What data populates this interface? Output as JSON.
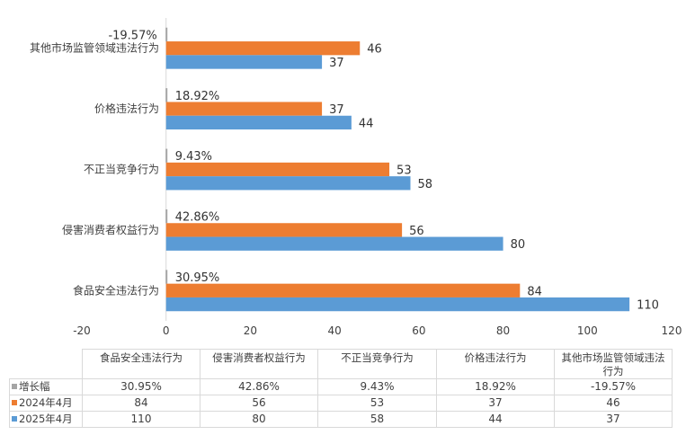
{
  "chart_data": {
    "type": "bar",
    "orientation": "horizontal",
    "categories": [
      "食品安全违法行为",
      "侵害消费者权益行为",
      "不正当竞争行为",
      "价格违法行为",
      "其他市场监管领域违法行为"
    ],
    "series": [
      {
        "name": "增长幅",
        "values": [
          30.95,
          42.86,
          9.43,
          18.92,
          -19.57
        ],
        "labels": [
          "30.95%",
          "42.86%",
          "9.43%",
          "18.92%",
          "-19.57%"
        ],
        "color": "#a5a5a5"
      },
      {
        "name": "2024年4月",
        "values": [
          84,
          56,
          53,
          37,
          46
        ],
        "labels": [
          "84",
          "56",
          "53",
          "37",
          "46"
        ],
        "color": "#ed7d31"
      },
      {
        "name": "2025年4月",
        "values": [
          110,
          80,
          58,
          44,
          37
        ],
        "labels": [
          "110",
          "80",
          "58",
          "44",
          "37"
        ],
        "color": "#5b9bd5"
      }
    ],
    "xlim": [
      -20,
      120
    ],
    "xticks": [
      "-20",
      "0",
      "20",
      "40",
      "60",
      "80",
      "100",
      "120"
    ],
    "grid": false,
    "legend": "data table below chart",
    "table_header_lines": [
      [
        "食品安全违法行为"
      ],
      [
        "侵害消费者权益行为"
      ],
      [
        "不正当竞争行为"
      ],
      [
        "价格违法行为"
      ],
      [
        "其他市场监管领域违法",
        "行为"
      ]
    ]
  }
}
